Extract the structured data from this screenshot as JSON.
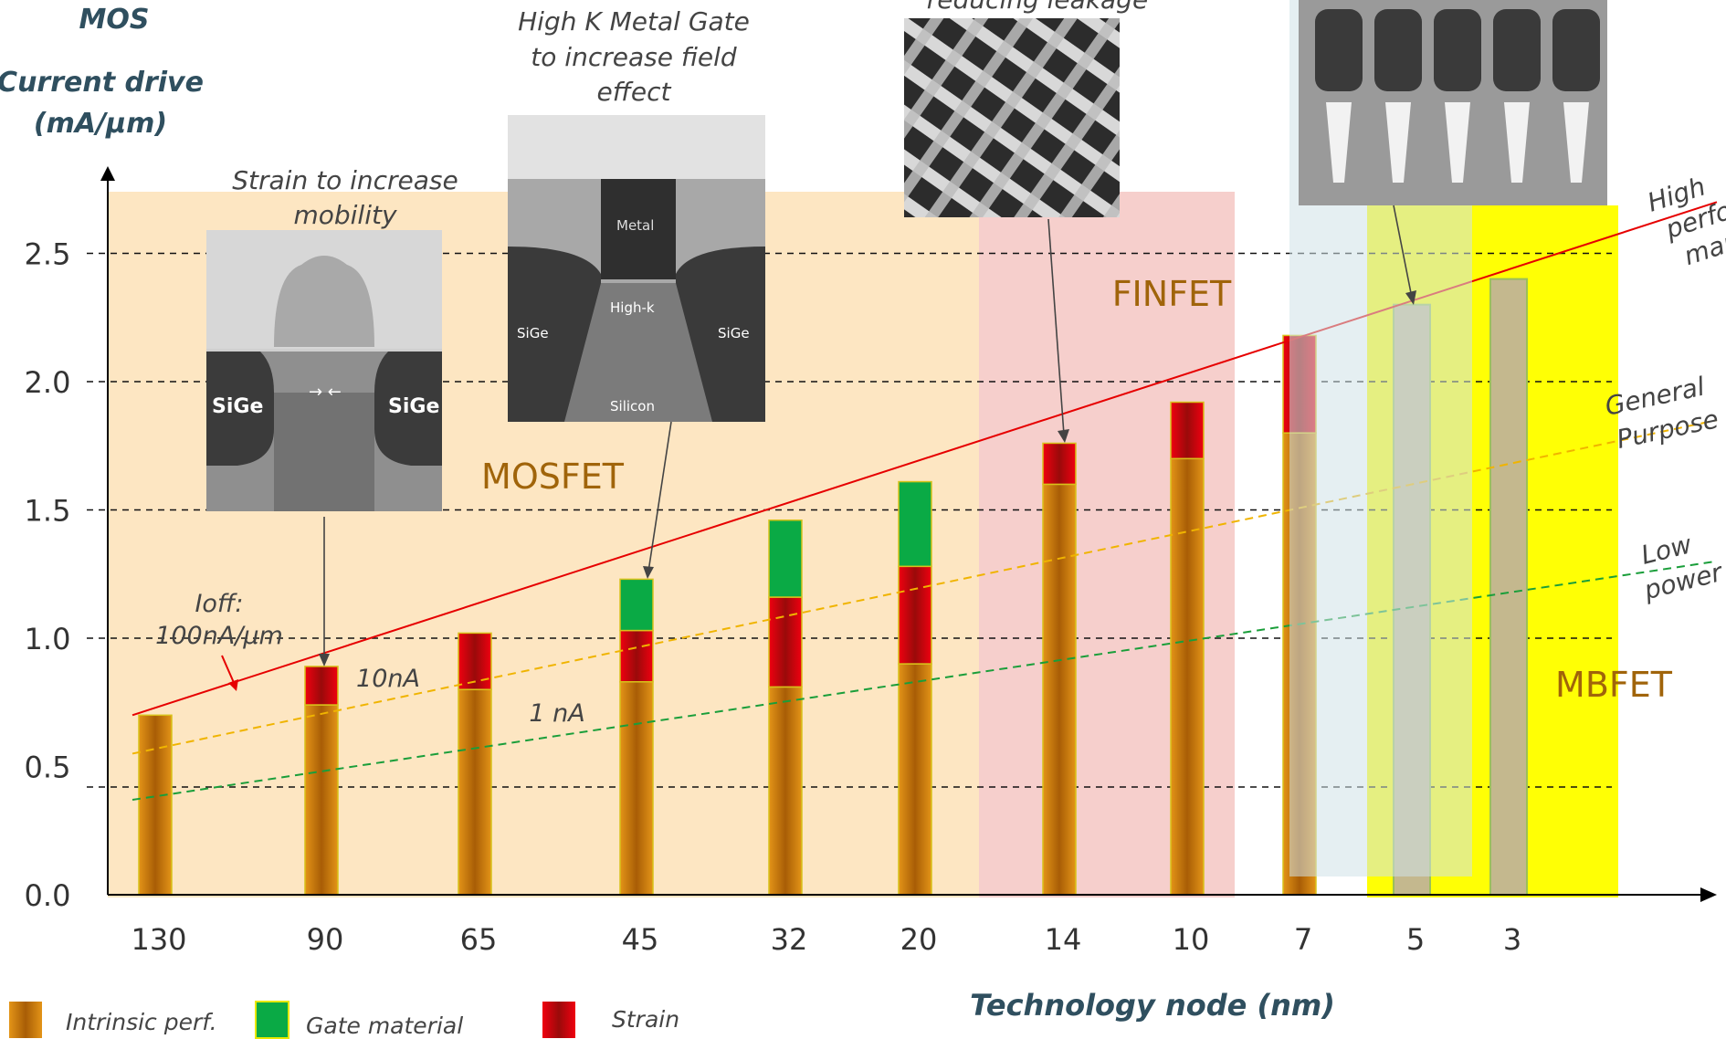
{
  "chart_data": {
    "type": "bar",
    "ylabel_lines": [
      "MOS",
      "Current drive",
      "(mA/µm)"
    ],
    "xlabel": "Technology node (nm)",
    "ylim": [
      0,
      2.6
    ],
    "yticks": [
      "0.0",
      "0.5",
      "1.0",
      "1.5",
      "2.0",
      "2.5"
    ],
    "ytick_values": [
      0,
      0.5,
      1.0,
      1.5,
      2.0,
      2.5
    ],
    "gridlines": [
      0.42,
      1.0,
      1.5,
      2.0,
      2.5
    ],
    "categories": [
      "130",
      "90",
      "65",
      "45",
      "32",
      "20",
      "14",
      "10",
      "7",
      "5",
      "3"
    ],
    "series": [
      {
        "name": "Intrinsic perf.",
        "color": "#d98c0b",
        "values": [
          0.7,
          0.74,
          0.8,
          0.83,
          0.81,
          0.9,
          1.6,
          1.7,
          1.8,
          0,
          0
        ]
      },
      {
        "name": "Strain",
        "color": "#e8000a",
        "values": [
          0,
          0.15,
          0.22,
          0.2,
          0.35,
          0.38,
          0.16,
          0.22,
          0.38,
          0,
          0
        ]
      },
      {
        "name": "Gate material",
        "color": "#0aaa45",
        "values": [
          0,
          0,
          0,
          0.2,
          0.3,
          0.33,
          0,
          0,
          0,
          0,
          0
        ]
      }
    ],
    "mbfet_values": [
      0,
      0,
      0,
      0,
      0,
      0,
      0,
      0,
      0,
      2.3,
      2.4
    ],
    "mbfet_bar_color": "#c4b88e",
    "regions": [
      {
        "name": "MOSFET",
        "color": "#fde6c2"
      },
      {
        "name": "FINFET",
        "color": "#f6cfcc"
      },
      {
        "name": "MBFET",
        "color": "#ffff05"
      }
    ],
    "trend_lines": [
      {
        "label": "High perfor mance",
        "label_lines": [
          "High",
          "perfor",
          "mance"
        ],
        "color": "#e60000",
        "dash": false,
        "start": 0.7,
        "end": 2.7
      },
      {
        "label": "General Purpose",
        "label_lines": [
          "General",
          "Purpose"
        ],
        "color": "#f0b400",
        "dash": true,
        "start": 0.55,
        "end": 1.85
      },
      {
        "label": "Low power",
        "label_lines": [
          "Low",
          "power"
        ],
        "color": "#1a9e3a",
        "dash": true,
        "start": 0.37,
        "end": 1.3
      }
    ],
    "annotations": {
      "ioff_lines": [
        "Ioff:",
        "100nA/µm"
      ],
      "tenna": "10nA",
      "onena": "1 nA",
      "strain_lines": [
        "Strain to increase",
        "mobility"
      ],
      "hkmg_lines": [
        "High K Metal Gate",
        "to increase field",
        "effect"
      ],
      "finfet_top": "reducing leakage"
    },
    "image_labels": {
      "strain_left": "SiGe",
      "strain_right": "SiGe",
      "hkmg_metal": "Metal",
      "hkmg_highk": "High-k",
      "hkmg_sige_left": "SiGe",
      "hkmg_sige_right": "SiGe",
      "hkmg_silicon": "Silicon"
    },
    "legend": [
      {
        "label": "Intrinsic perf.",
        "color": "#d98c0b"
      },
      {
        "label": "Gate material",
        "color": "#0aaa45"
      },
      {
        "label": "Strain",
        "color": "#e8000a"
      }
    ],
    "legend_placement": "bottom-left"
  }
}
